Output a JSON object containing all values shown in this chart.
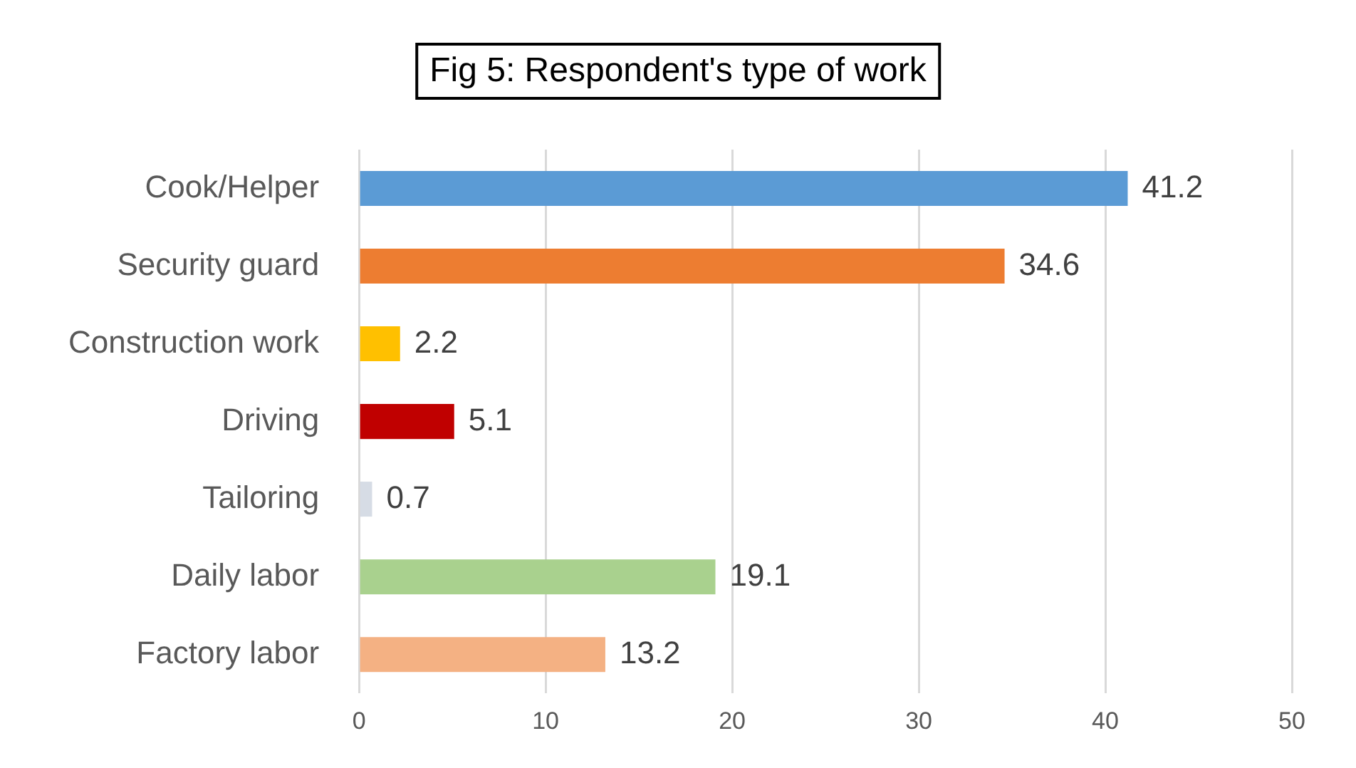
{
  "chart_data": {
    "type": "bar",
    "orientation": "horizontal",
    "title": "Fig 5: Respondent's type of work",
    "categories": [
      "Cook/Helper",
      "Security guard",
      "Construction work",
      "Driving",
      "Tailoring",
      "Daily labor",
      "Factory labor"
    ],
    "values": [
      41.2,
      34.6,
      2.2,
      5.1,
      0.7,
      19.1,
      13.2
    ],
    "colors": [
      "#5b9bd5",
      "#ed7d31",
      "#ffc000",
      "#c00000",
      "#d6dce5",
      "#a9d18e",
      "#f4b183"
    ],
    "xlim": [
      0,
      50
    ],
    "xticks": [
      0,
      10,
      20,
      30,
      40,
      50
    ],
    "grid": "x",
    "data_labels": true
  }
}
